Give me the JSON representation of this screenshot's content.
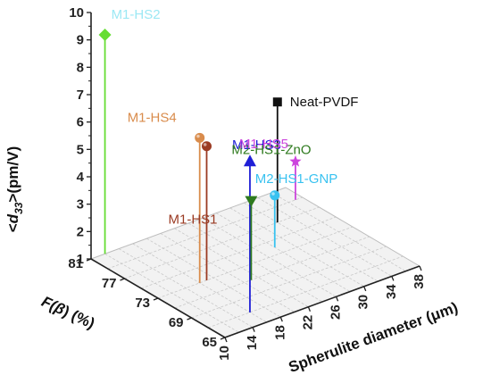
{
  "chart_data": {
    "type": "scatter",
    "title": "",
    "axes": {
      "z": {
        "label_prefix": "<",
        "label_symbol": "d",
        "label_subscript": "33",
        "label_suffix": ">(pm/V)",
        "range": [
          1,
          10
        ],
        "ticks": [
          "1",
          "2",
          "3",
          "4",
          "5",
          "6",
          "7",
          "8",
          "9",
          "10"
        ]
      },
      "y": {
        "label_prefix": "F(",
        "label_symbol": "β",
        "label_suffix": ") (%)",
        "range": [
          65,
          81
        ],
        "ticks": [
          "65",
          "69",
          "73",
          "77",
          "81"
        ]
      },
      "x": {
        "label_prefix": "Spherulite diameter (",
        "label_symbol": "μ",
        "label_suffix": "m)",
        "range": [
          10,
          38
        ],
        "ticks": [
          "10",
          "14",
          "18",
          "22",
          "26",
          "30",
          "34",
          "38"
        ]
      }
    },
    "grid": true,
    "points": [
      {
        "name": "M1-HS2",
        "x": 12,
        "y": 81,
        "z": 9.0,
        "color": "#66dd33",
        "marker": "diamond"
      },
      {
        "name": "M1-HS4",
        "x": 16,
        "y": 73,
        "z": 6.3,
        "color": "#d98c4c",
        "marker": "circle"
      },
      {
        "name": "M1-HS1",
        "x": 17,
        "y": 73,
        "z": 5.9,
        "color": "#9b3b23",
        "marker": "circle"
      },
      {
        "name": "M1-HS3",
        "x": 16,
        "y": 67,
        "z": 6.5,
        "color": "#1f1fd6",
        "marker": "triangle-up"
      },
      {
        "name": "M2-HS1-ZnO",
        "x": 21,
        "y": 71,
        "z": 3.9,
        "color": "#2e7a1e",
        "marker": "triangle-down"
      },
      {
        "name": "M2-HS1-GNP",
        "x": 28,
        "y": 74,
        "z": 2.9,
        "color": "#39c2f0",
        "marker": "circle"
      },
      {
        "name": "Neat-PVDF",
        "x": 32,
        "y": 77,
        "z": 5.4,
        "color": "#111111",
        "marker": "square"
      },
      {
        "name": "M1-HS5",
        "x": 37,
        "y": 79,
        "z": 2.4,
        "color": "#cc44dd",
        "marker": "star"
      }
    ],
    "annotations": [
      {
        "text": "M1-HS2",
        "color": "#66dd33",
        "for": "M1-HS2"
      },
      {
        "text": "M1-HS2",
        "color": "#9ce8f4",
        "for": "M1-HS2"
      },
      {
        "text": "M1-HS4",
        "color": "#d98c4c",
        "for": "M1-HS4"
      },
      {
        "text": "M1-HS1",
        "color": "#9b3b23",
        "for": "M1-HS1"
      },
      {
        "text": "M1-HS3",
        "color": "#1f1fd6",
        "for": "M1-HS3"
      },
      {
        "text": "M2-HS1-ZnO",
        "color": "#2e7a1e",
        "for": "M2-HS1-ZnO"
      },
      {
        "text": "M2-HS1-GNP",
        "color": "#39c2f0",
        "for": "M2-HS1-GNP"
      },
      {
        "text": "Neat-PVDF",
        "color": "#111111",
        "for": "Neat-PVDF"
      },
      {
        "text": "M1-HS5",
        "color": "#cc44dd",
        "for": "M1-HS5"
      }
    ]
  }
}
